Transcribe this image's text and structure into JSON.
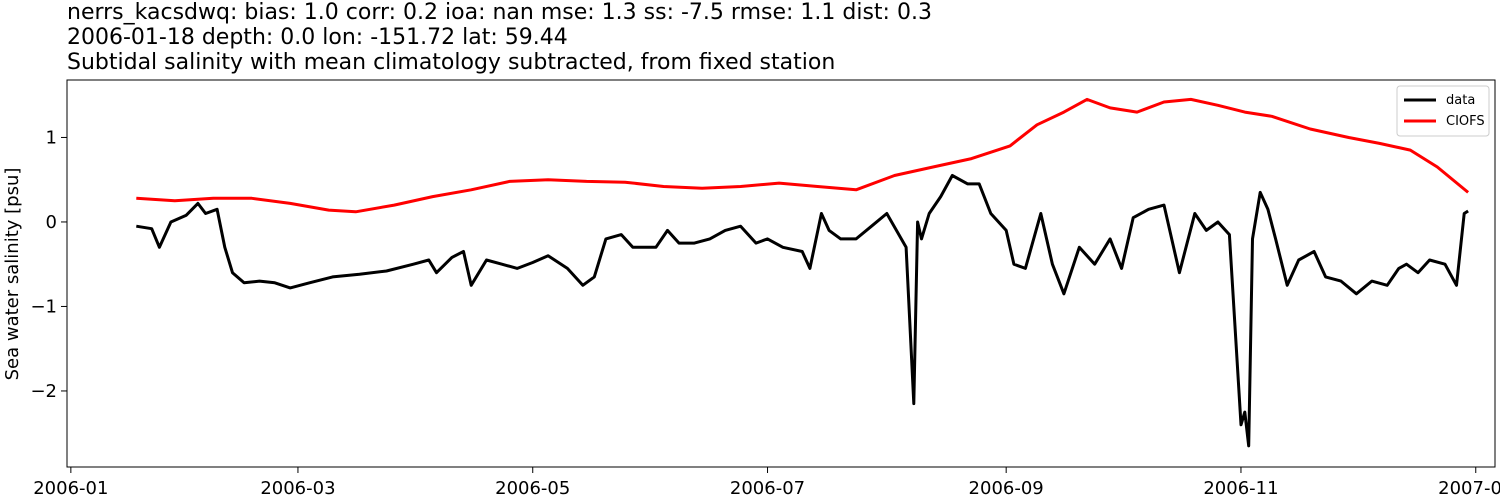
{
  "chart_data": {
    "type": "line",
    "title_lines": [
      "nerrs_kacsdwq: bias: 1.0  corr: 0.2  ioa: nan  mse: 1.3  ss: -7.5  rmse: 1.1  dist: 0.3",
      "2006-01-18 depth: 0.0 lon: -151.72 lat: 59.44",
      "Subtidal salinity with mean climatology subtracted, from fixed station"
    ],
    "xlabel": "",
    "ylabel": "Sea water salinity [psu]",
    "x_axis_type": "date",
    "xlim": [
      "2005-12-31",
      "2007-01-06"
    ],
    "ylim": [
      -2.9,
      1.68
    ],
    "x_ticks": [
      "2006-01",
      "2006-03",
      "2006-05",
      "2006-07",
      "2006-09",
      "2006-11",
      "2007-01"
    ],
    "x_tick_dates": [
      "2006-01-01",
      "2006-03-01",
      "2006-05-01",
      "2006-07-01",
      "2006-09-01",
      "2006-11-01",
      "2007-01-01"
    ],
    "y_ticks": [
      1,
      0,
      -1,
      -2
    ],
    "y_tick_labels": [
      "1",
      "0",
      "−1",
      "−2"
    ],
    "grid": false,
    "legend_position": "top-right",
    "series": [
      {
        "name": "data",
        "color": "#000000",
        "x": [
          "2006-01-18",
          "2006-01-22",
          "2006-01-24",
          "2006-01-27",
          "2006-01-31",
          "2006-02-03",
          "2006-02-05",
          "2006-02-08",
          "2006-02-10",
          "2006-02-12",
          "2006-02-15",
          "2006-02-19",
          "2006-02-23",
          "2006-02-27",
          "2006-03-04",
          "2006-03-10",
          "2006-03-17",
          "2006-03-24",
          "2006-03-31",
          "2006-04-04",
          "2006-04-06",
          "2006-04-10",
          "2006-04-13",
          "2006-04-15",
          "2006-04-19",
          "2006-04-23",
          "2006-04-27",
          "2006-05-01",
          "2006-05-05",
          "2006-05-10",
          "2006-05-14",
          "2006-05-17",
          "2006-05-20",
          "2006-05-24",
          "2006-05-27",
          "2006-06-02",
          "2006-06-05",
          "2006-06-08",
          "2006-06-12",
          "2006-06-16",
          "2006-06-20",
          "2006-06-24",
          "2006-06-28",
          "2006-07-01",
          "2006-07-05",
          "2006-07-10",
          "2006-07-12",
          "2006-07-15",
          "2006-07-17",
          "2006-07-20",
          "2006-07-24",
          "2006-07-28",
          "2006-08-01",
          "2006-08-06",
          "2006-08-08",
          "2006-08-09",
          "2006-08-10",
          "2006-08-12",
          "2006-08-15",
          "2006-08-18",
          "2006-08-22",
          "2006-08-25",
          "2006-08-28",
          "2006-09-01",
          "2006-09-03",
          "2006-09-06",
          "2006-09-10",
          "2006-09-13",
          "2006-09-16",
          "2006-09-20",
          "2006-09-24",
          "2006-09-28",
          "2006-10-01",
          "2006-10-04",
          "2006-10-08",
          "2006-10-12",
          "2006-10-16",
          "2006-10-20",
          "2006-10-23",
          "2006-10-26",
          "2006-10-29",
          "2006-11-01",
          "2006-11-02",
          "2006-11-03",
          "2006-11-04",
          "2006-11-06",
          "2006-11-08",
          "2006-11-10",
          "2006-11-13",
          "2006-11-16",
          "2006-11-20",
          "2006-11-23",
          "2006-11-27",
          "2006-12-01",
          "2006-12-05",
          "2006-12-09",
          "2006-12-12",
          "2006-12-14",
          "2006-12-17",
          "2006-12-20",
          "2006-12-24",
          "2006-12-27",
          "2006-12-29",
          "2006-12-30"
        ],
        "y": [
          -0.05,
          -0.08,
          -0.3,
          0.0,
          0.08,
          0.22,
          0.1,
          0.15,
          -0.3,
          -0.6,
          -0.72,
          -0.7,
          -0.72,
          -0.78,
          -0.72,
          -0.65,
          -0.62,
          -0.58,
          -0.5,
          -0.45,
          -0.6,
          -0.42,
          -0.35,
          -0.75,
          -0.45,
          -0.5,
          -0.55,
          -0.48,
          -0.4,
          -0.55,
          -0.75,
          -0.65,
          -0.2,
          -0.15,
          -0.3,
          -0.3,
          -0.1,
          -0.25,
          -0.25,
          -0.2,
          -0.1,
          -0.05,
          -0.25,
          -0.2,
          -0.3,
          -0.35,
          -0.55,
          0.1,
          -0.1,
          -0.2,
          -0.2,
          -0.05,
          0.1,
          -0.3,
          -2.15,
          0.0,
          -0.2,
          0.1,
          0.3,
          0.55,
          0.45,
          0.45,
          0.1,
          -0.1,
          -0.5,
          -0.55,
          0.1,
          -0.5,
          -0.85,
          -0.3,
          -0.5,
          -0.2,
          -0.55,
          0.05,
          0.15,
          0.2,
          -0.6,
          0.1,
          -0.1,
          0.0,
          -0.15,
          -2.4,
          -2.25,
          -2.65,
          -0.2,
          0.35,
          0.15,
          -0.2,
          -0.75,
          -0.45,
          -0.35,
          -0.65,
          -0.7,
          -0.85,
          -0.7,
          -0.75,
          -0.55,
          -0.5,
          -0.6,
          -0.45,
          -0.5,
          -0.75,
          0.1,
          0.13
        ]
      },
      {
        "name": "CIOFS",
        "color": "#ff0000",
        "x": [
          "2006-01-18",
          "2006-01-28",
          "2006-02-07",
          "2006-02-17",
          "2006-02-27",
          "2006-03-09",
          "2006-03-16",
          "2006-03-26",
          "2006-04-05",
          "2006-04-15",
          "2006-04-25",
          "2006-05-05",
          "2006-05-15",
          "2006-05-25",
          "2006-06-04",
          "2006-06-14",
          "2006-06-24",
          "2006-07-04",
          "2006-07-14",
          "2006-07-24",
          "2006-08-03",
          "2006-08-13",
          "2006-08-23",
          "2006-09-02",
          "2006-09-09",
          "2006-09-16",
          "2006-09-22",
          "2006-09-28",
          "2006-10-05",
          "2006-10-12",
          "2006-10-19",
          "2006-10-26",
          "2006-11-02",
          "2006-11-09",
          "2006-11-19",
          "2006-11-29",
          "2006-12-07",
          "2006-12-15",
          "2006-12-22",
          "2006-12-30"
        ],
        "y": [
          0.28,
          0.25,
          0.28,
          0.28,
          0.22,
          0.14,
          0.12,
          0.2,
          0.3,
          0.38,
          0.48,
          0.5,
          0.48,
          0.47,
          0.42,
          0.4,
          0.42,
          0.46,
          0.42,
          0.38,
          0.55,
          0.65,
          0.75,
          0.9,
          1.15,
          1.3,
          1.45,
          1.35,
          1.3,
          1.42,
          1.45,
          1.38,
          1.3,
          1.25,
          1.1,
          1.0,
          0.93,
          0.85,
          0.65,
          0.35
        ]
      }
    ]
  }
}
